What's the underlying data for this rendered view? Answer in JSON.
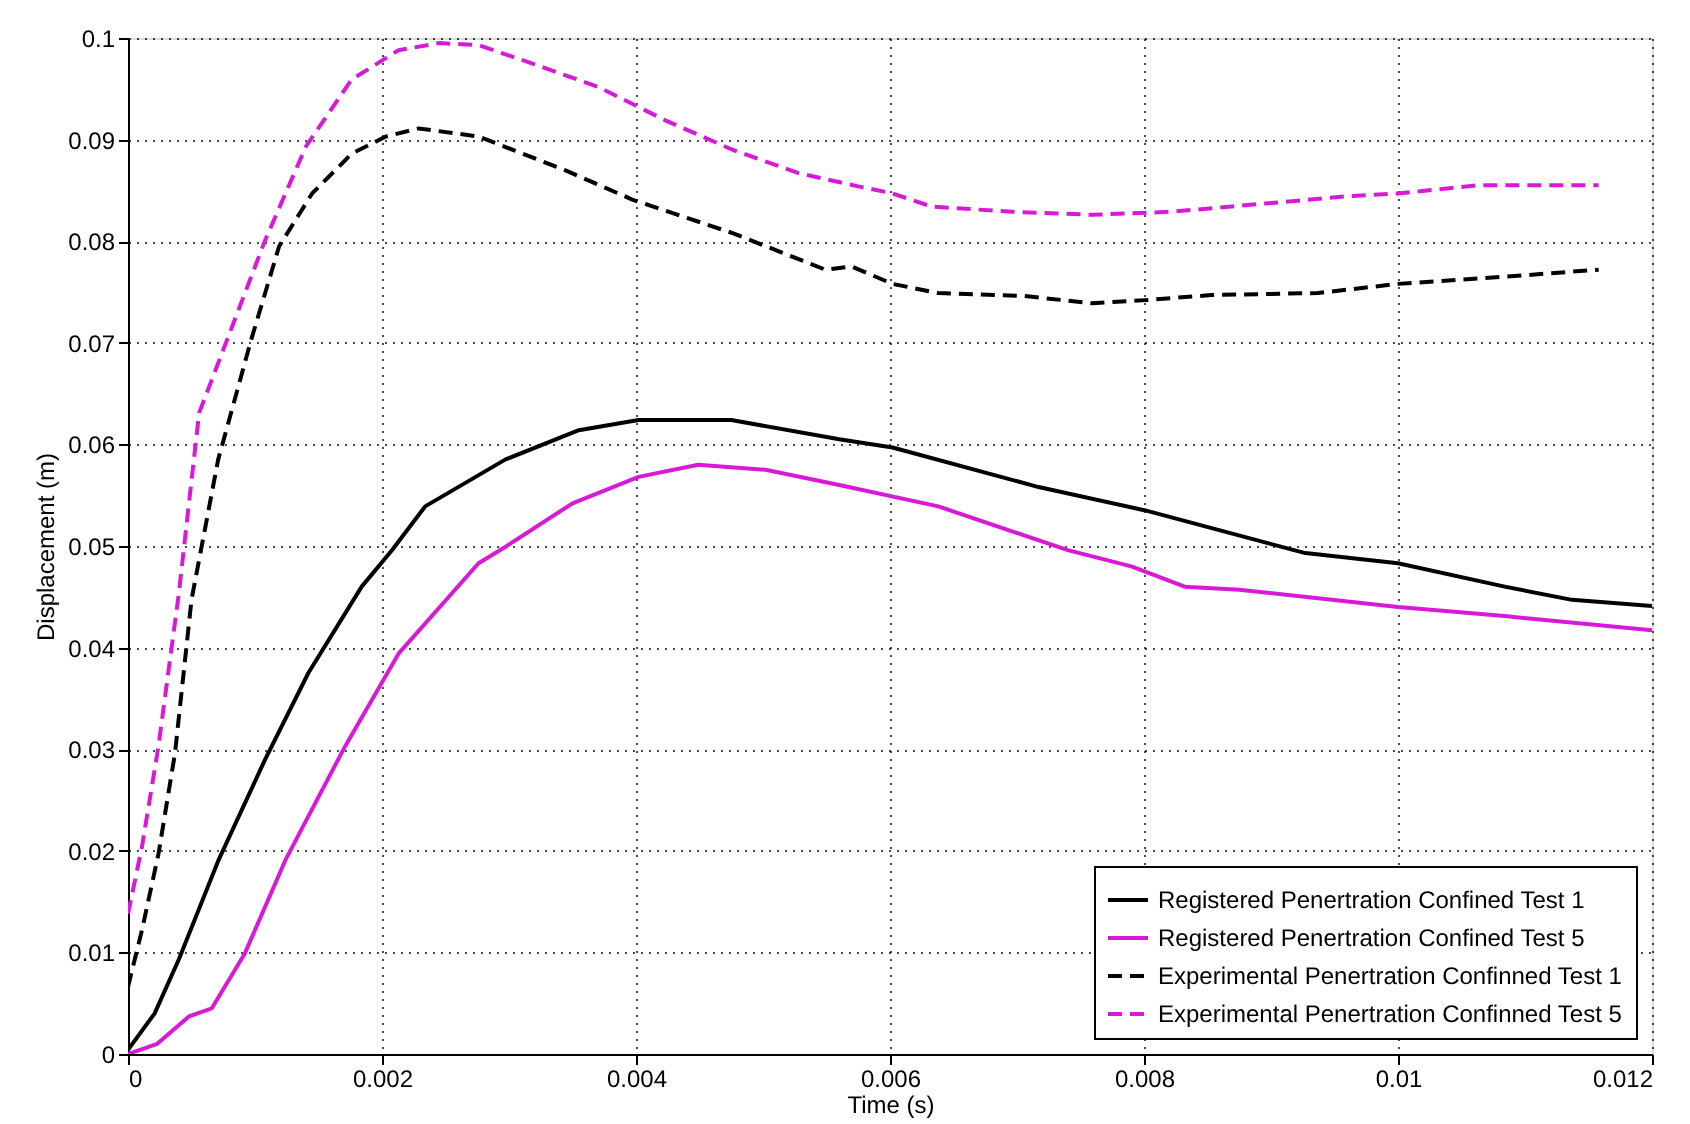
{
  "chart_data": {
    "type": "line",
    "xlabel": "Time (s)",
    "ylabel": "Displacement (m)",
    "xlim": [
      0,
      0.012
    ],
    "ylim": [
      0,
      0.1
    ],
    "xticks": [
      0,
      0.002,
      0.004,
      0.006,
      0.008,
      0.01,
      0.012
    ],
    "yticks": [
      0,
      0.01,
      0.02,
      0.03,
      0.04,
      0.05,
      0.06,
      0.07,
      0.08,
      0.09,
      0.1
    ],
    "grid": true,
    "legend": "bottom right",
    "marker": "none",
    "series": [
      {
        "name": "Registered Penertration Confined Test 1",
        "color": "#000000",
        "line_style": "solid",
        "x": [
          0,
          0.00021,
          0.0004,
          0.00071,
          0.00108,
          0.00142,
          0.00184,
          0.00208,
          0.00234,
          0.00297,
          0.00355,
          0.00402,
          0.00475,
          0.0056,
          0.00602,
          0.00717,
          0.00801,
          0.00927,
          0.01,
          0.01084,
          0.01137,
          0.012
        ],
        "values": [
          0.0004,
          0.004,
          0.0093,
          0.019,
          0.029,
          0.0375,
          0.046,
          0.0496,
          0.0539,
          0.0585,
          0.0614,
          0.0624,
          0.0624,
          0.0605,
          0.0597,
          0.0558,
          0.0535,
          0.0493,
          0.0483,
          0.046,
          0.0447,
          0.0441
        ]
      },
      {
        "name": "Registered Penertration Confined Test 5",
        "color": "#d81ad8",
        "line_style": "solid",
        "x": [
          0,
          0.00023,
          0.00048,
          0.00066,
          0.00092,
          0.00124,
          0.00171,
          0.00213,
          0.00276,
          0.00297,
          0.0035,
          0.00402,
          0.00449,
          0.00502,
          0.0056,
          0.00638,
          0.0074,
          0.0079,
          0.00832,
          0.00875,
          0.01,
          0.01084,
          0.012
        ],
        "values": [
          0,
          0.001,
          0.0037,
          0.0045,
          0.0099,
          0.0191,
          0.0303,
          0.0394,
          0.0483,
          0.0499,
          0.0542,
          0.0568,
          0.058,
          0.0575,
          0.056,
          0.0539,
          0.0496,
          0.048,
          0.046,
          0.0457,
          0.044,
          0.0431,
          0.0417
        ]
      },
      {
        "name": "Experimental Penertration Confinned Test 1",
        "color": "#000000",
        "line_style": "dashed",
        "x": [
          0,
          0.00011,
          0.00024,
          0.00037,
          0.0005,
          0.00071,
          0.00097,
          0.00119,
          0.00145,
          0.00176,
          0.00203,
          0.00229,
          0.00276,
          0.00344,
          0.00397,
          0.00476,
          0.00549,
          0.0057,
          0.00602,
          0.00638,
          0.00706,
          0.00759,
          0.00801,
          0.00853,
          0.00937,
          0.01,
          0.01084,
          0.01158
        ],
        "values": [
          0.0066,
          0.0122,
          0.0197,
          0.0296,
          0.0447,
          0.0585,
          0.0703,
          0.0795,
          0.0847,
          0.0886,
          0.0903,
          0.0911,
          0.0903,
          0.087,
          0.0841,
          0.0808,
          0.0772,
          0.0775,
          0.0758,
          0.0749,
          0.0746,
          0.0739,
          0.0742,
          0.0747,
          0.0749,
          0.0758,
          0.0765,
          0.0772
        ]
      },
      {
        "name": "Experimental Penertration Confinned Test 5",
        "color": "#d81ad8",
        "line_style": "dashed",
        "x": [
          0,
          0.00011,
          0.00024,
          0.0004,
          0.00056,
          0.00082,
          0.00108,
          0.0014,
          0.00176,
          0.00213,
          0.00245,
          0.00276,
          0.00318,
          0.0037,
          0.00423,
          0.00476,
          0.00528,
          0.00575,
          0.00602,
          0.00633,
          0.00696,
          0.00759,
          0.00822,
          0.00895,
          0.00958,
          0.01,
          0.01063,
          0.01158
        ],
        "values": [
          0.0138,
          0.0204,
          0.0303,
          0.0453,
          0.0631,
          0.0716,
          0.0801,
          0.0893,
          0.0959,
          0.0988,
          0.0995,
          0.0993,
          0.0975,
          0.0952,
          0.0919,
          0.089,
          0.0867,
          0.0854,
          0.0847,
          0.0834,
          0.0829,
          0.0826,
          0.0829,
          0.0837,
          0.0844,
          0.0847,
          0.0855,
          0.0855
        ]
      }
    ]
  }
}
